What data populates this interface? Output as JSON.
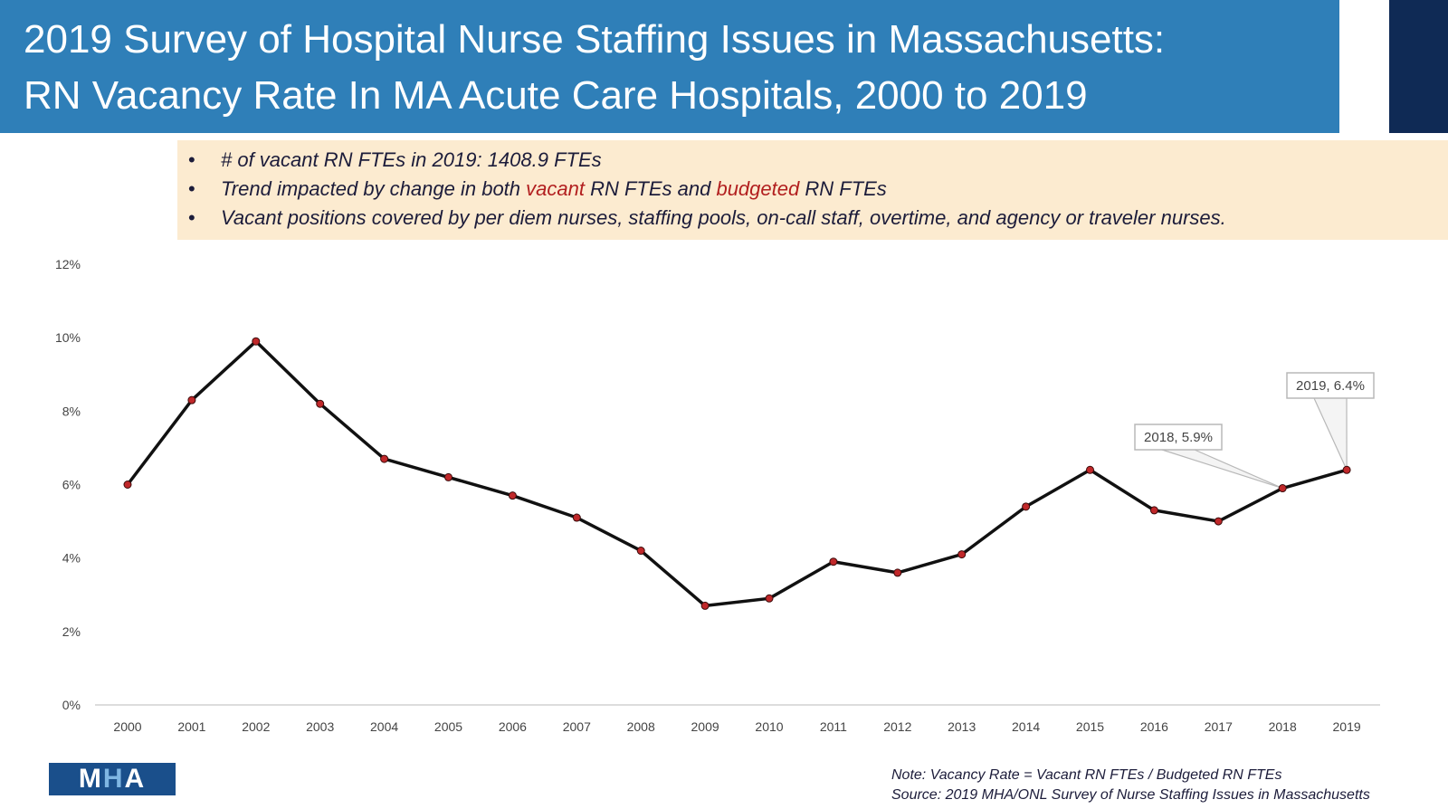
{
  "header": {
    "title_line1": "2019 Survey of Hospital Nurse Staffing Issues in Massachusetts:",
    "title_line2": "RN Vacancy Rate In MA Acute Care Hospitals, 2000 to 2019"
  },
  "bullets": {
    "marker": "•",
    "b1": "# of vacant RN FTEs in 2019: 1408.9 FTEs",
    "b2_pre": "Trend impacted by change in both ",
    "b2_vacant": "vacant",
    "b2_mid": " RN FTEs and ",
    "b2_budgeted": "budgeted",
    "b2_post": " RN FTEs",
    "b3": "Vacant positions covered by per diem nurses, staffing pools, on-call staff, overtime, and agency or traveler nurses."
  },
  "chart_data": {
    "type": "line",
    "title": "",
    "xlabel": "",
    "ylabel": "",
    "ylim": [
      0,
      12
    ],
    "yticks": [
      "0%",
      "2%",
      "4%",
      "6%",
      "8%",
      "10%",
      "12%"
    ],
    "ytick_values": [
      0,
      2,
      4,
      6,
      8,
      10,
      12
    ],
    "categories": [
      "2000",
      "2001",
      "2002",
      "2003",
      "2004",
      "2005",
      "2006",
      "2007",
      "2008",
      "2009",
      "2010",
      "2011",
      "2012",
      "2013",
      "2014",
      "2015",
      "2016",
      "2017",
      "2018",
      "2019"
    ],
    "series": [
      {
        "name": "RN Vacancy Rate",
        "values": [
          6.0,
          8.3,
          9.9,
          8.2,
          6.7,
          6.2,
          5.7,
          5.1,
          4.2,
          2.7,
          2.9,
          3.9,
          3.6,
          4.1,
          5.4,
          6.4,
          5.3,
          5.0,
          5.9,
          6.4
        ]
      }
    ],
    "annotations": [
      {
        "index": 18,
        "text": "2018, 5.9%"
      },
      {
        "index": 19,
        "text": "2019, 6.4%"
      }
    ],
    "line_color": "#111111",
    "marker_color": "#c0282a"
  },
  "footer": {
    "logo_m": "M",
    "logo_h": "H",
    "logo_a": "A",
    "note": "Note: Vacancy Rate = Vacant RN FTEs / Budgeted RN FTEs",
    "source": "Source: 2019 MHA/ONL Survey of Nurse Staffing Issues in Massachusetts"
  }
}
